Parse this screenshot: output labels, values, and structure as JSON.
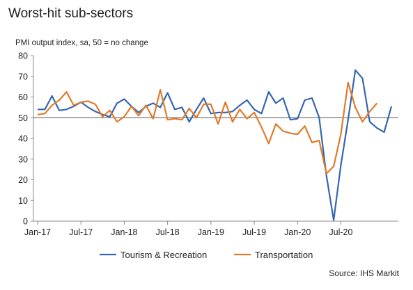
{
  "title": "Worst-hit sub-sectors",
  "subtitle": "PMI output index, sa, 50 = no change",
  "source": "Source: IHS Markit",
  "chart_data": {
    "type": "line",
    "x_start": "Jan-17",
    "x_tick_labels": [
      "Jan-17",
      "Jul-17",
      "Jan-18",
      "Jul-18",
      "Jan-19",
      "Jul-19",
      "Jan-20",
      "Jul-20"
    ],
    "x_tick_indices": [
      0,
      6,
      12,
      18,
      24,
      30,
      36,
      42
    ],
    "ylim": [
      0,
      80
    ],
    "yticks": [
      0,
      10,
      20,
      30,
      40,
      50,
      60,
      70,
      80
    ],
    "reference_line": 50,
    "grid": false,
    "legend_position": "bottom",
    "series": [
      {
        "name": "Tourism & Recreation",
        "color": "#3566b0",
        "values": [
          54,
          54,
          60.5,
          53.5,
          54,
          55.5,
          57.5,
          55,
          53,
          51.5,
          50.5,
          57,
          59,
          55.5,
          52.5,
          55.5,
          57,
          55,
          62,
          54,
          55,
          48,
          54,
          59.5,
          52,
          52.5,
          52.5,
          53,
          56,
          58.5,
          54,
          52,
          62.5,
          57,
          59.5,
          49,
          49.5,
          58.5,
          59.5,
          50,
          22,
          0.5,
          27,
          49,
          73,
          69,
          48,
          45,
          43,
          55.5
        ]
      },
      {
        "name": "Transportation",
        "color": "#e07b2b",
        "values": [
          51.5,
          52,
          56,
          58.5,
          62.5,
          56,
          57.5,
          58,
          56.5,
          50.5,
          53.5,
          48,
          50.5,
          55.5,
          51,
          56,
          49.5,
          63.5,
          49,
          49.5,
          49,
          54.5,
          50,
          56.5,
          56.5,
          47,
          57.5,
          48,
          54,
          49.5,
          52.5,
          45.5,
          37.5,
          47,
          43.5,
          42.5,
          42,
          46,
          38,
          39,
          23,
          26.5,
          42,
          67,
          55,
          48,
          53,
          57
        ]
      }
    ]
  }
}
